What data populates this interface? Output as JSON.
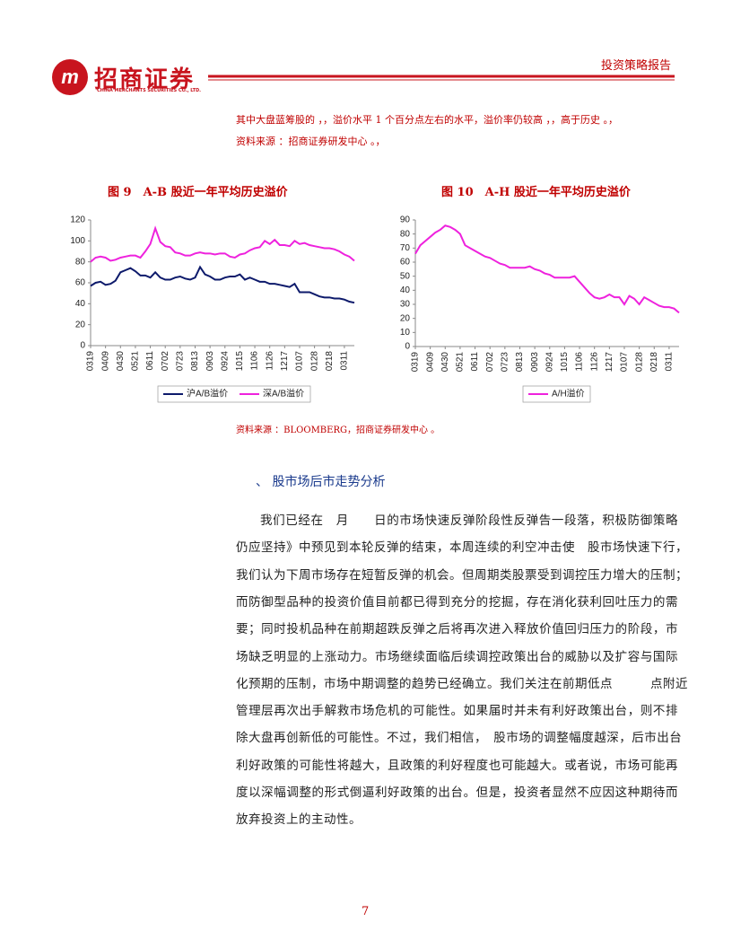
{
  "header": {
    "brand": "招商证券",
    "brand_en": "CHINA MERCHANTS SECURITIES CO., LTD.",
    "report_type": "投资策略报告"
  },
  "intro": [
    "其中大盘蓝筹股的 ，，溢价水平 1 个百分点左右的水平，溢价率仍较高 ，，高于历史 。，",
    "资料来源 ：招商证券研发中心 。，"
  ],
  "chart_data": [
    {
      "type": "line",
      "title": "图 9　A-B 股近一年平均历史溢价",
      "categories": [
        "0319",
        null,
        null,
        "0409",
        null,
        null,
        "0430",
        null,
        null,
        "0521",
        null,
        null,
        "0611",
        null,
        null,
        "0702",
        null,
        null,
        "0723",
        null,
        null,
        "0813",
        null,
        null,
        "0903",
        null,
        null,
        "0924",
        null,
        null,
        "1015",
        null,
        null,
        "1106",
        null,
        null,
        "1126",
        null,
        null,
        "1217",
        null,
        null,
        "0107",
        null,
        null,
        "0128",
        null,
        null,
        "0218",
        null,
        null,
        "0311",
        null,
        null
      ],
      "series": [
        {
          "name": "沪A/B溢价",
          "color": "#0d1a6b",
          "values": [
            57,
            60,
            61,
            58,
            59,
            62,
            70,
            72,
            74,
            71,
            67,
            67,
            65,
            70,
            65,
            63,
            63,
            65,
            66,
            64,
            63,
            65,
            75,
            68,
            66,
            63,
            63,
            65,
            66,
            66,
            68,
            63,
            65,
            63,
            61,
            61,
            59,
            59,
            58,
            57,
            56,
            59,
            51,
            51,
            51,
            49,
            47,
            46,
            46,
            45,
            45,
            44,
            42,
            41
          ]
        },
        {
          "name": "深A/B溢价",
          "color": "#ee22dd",
          "values": [
            80,
            84,
            85,
            84,
            81,
            82,
            84,
            85,
            86,
            86,
            84,
            90,
            97,
            112,
            99,
            95,
            94,
            89,
            88,
            86,
            86,
            88,
            89,
            88,
            88,
            87,
            88,
            88,
            85,
            84,
            87,
            88,
            91,
            93,
            94,
            100,
            97,
            101,
            96,
            96,
            95,
            100,
            97,
            98,
            96,
            95,
            94,
            93,
            93,
            92,
            90,
            87,
            85,
            81
          ]
        }
      ],
      "ylim": [
        0,
        120
      ],
      "yticks": [
        0,
        20,
        40,
        60,
        80,
        100,
        120
      ]
    },
    {
      "type": "line",
      "title": "图 10　A-H 股近一年平均历史溢价",
      "categories": [
        "0319",
        null,
        null,
        "0409",
        null,
        null,
        "0430",
        null,
        null,
        "0521",
        null,
        null,
        "0611",
        null,
        null,
        "0702",
        null,
        null,
        "0723",
        null,
        null,
        "0813",
        null,
        null,
        "0903",
        null,
        null,
        "0924",
        null,
        null,
        "1015",
        null,
        null,
        "1106",
        null,
        null,
        "1126",
        null,
        null,
        "1217",
        null,
        null,
        "0107",
        null,
        null,
        "0128",
        null,
        null,
        "0218",
        null,
        null,
        "0311",
        null,
        null
      ],
      "series": [
        {
          "name": "A/H溢价",
          "color": "#ee22dd",
          "values": [
            66,
            72,
            75,
            78,
            81,
            83,
            86,
            85,
            83,
            80,
            72,
            70,
            68,
            66,
            64,
            63,
            61,
            59,
            58,
            56,
            56,
            56,
            56,
            57,
            55,
            54,
            52,
            51,
            49,
            49,
            49,
            49,
            50,
            46,
            42,
            38,
            35,
            34,
            35,
            37,
            35,
            35,
            30,
            36,
            34,
            30,
            35,
            33,
            31,
            29,
            28,
            28,
            27,
            24
          ]
        }
      ],
      "ylim": [
        0,
        90
      ],
      "yticks": [
        0,
        10,
        20,
        30,
        40,
        50,
        60,
        70,
        80,
        90
      ]
    }
  ],
  "source": "资料来源 ：BLOOMBERG，招商证券研发中心 。",
  "section_heading": "、 股市场后市走势分析",
  "body_lines": [
    "我们已经在　月　　日的市场快速反弹阶段性反弹告一段落，积极防御策略",
    "仍应坚持》中预见到本轮反弹的结束，本周连续的利空冲击使　股市场快速下行，",
    "我们认为下周市场存在短暂反弹的机会。但周期类股票受到调控压力增大的压制；",
    "而防御型品种的投资价值目前都已得到充分的挖掘，存在消化获利回吐压力的需",
    "要；同时投机品种在前期超跌反弹之后将再次进入释放价值回归压力的阶段，市",
    "场缺乏明显的上涨动力。市场继续面临后续调控政策出台的威胁以及扩容与国际",
    "化预期的压制，市场中期调整的趋势已经确立。我们关注在前期低点　　　点附近",
    "管理层再次出手解救市场危机的可能性。如果届时并未有利好政策出台，则不排",
    "除大盘再创新低的可能性。不过，我们相信，　股市场的调整幅度越深，后市出台",
    "利好政策的可能性将越大，且政策的利好程度也可能越大。或者说，市场可能再",
    "度以深幅调整的形式倒逼利好政策的出台。但是，投资者显然不应因这种期待而",
    "放弃投资上的主动性。"
  ],
  "page_number": "7"
}
